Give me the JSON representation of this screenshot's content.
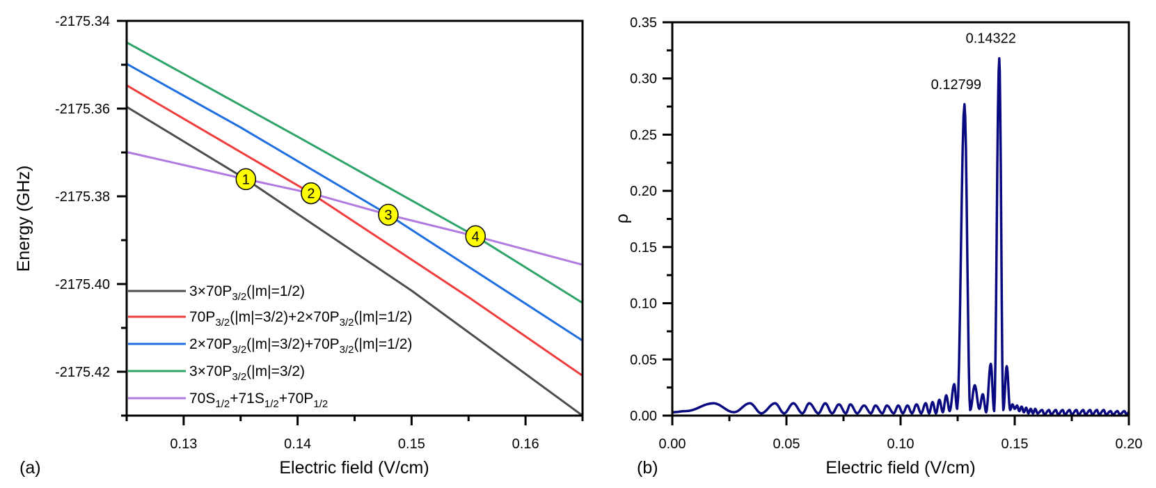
{
  "chart_data": [
    {
      "type": "line",
      "panel_label": "(a)",
      "xlabel": "Electric field (V/cm)",
      "ylabel": "Energy (GHz)",
      "xlim": [
        0.125,
        0.165
      ],
      "ylim": [
        -2175.43,
        -2175.34
      ],
      "xticks": [
        "0.13",
        "0.14",
        "0.15",
        "0.16"
      ],
      "yticks": [
        "-2175.34",
        "-2175.36",
        "-2175.38",
        "-2175.40",
        "-2175.42"
      ],
      "grid": false,
      "legend_position": "bottom-left",
      "series": [
        {
          "name": "3×70P3/2(|m|=1/2)",
          "legend": [
            [
              "3×70P",
              "n"
            ],
            [
              "3/2",
              "s"
            ],
            [
              "(|m|=1/2)",
              "n"
            ]
          ],
          "color": "#4d4d4d",
          "points": [
            [
              0.125,
              -2175.3596
            ],
            [
              0.13546,
              -2175.3761
            ],
            [
              0.15,
              -2175.4015
            ],
            [
              0.165,
              -2175.43
            ]
          ]
        },
        {
          "name": "70P3/2(|m|=3/2)+2×70P3/2(|m|=1/2)",
          "legend": [
            [
              "70P",
              "n"
            ],
            [
              "3/2",
              "s"
            ],
            [
              "(|m|=3/2)+2×70P",
              "n"
            ],
            [
              "3/2",
              "s"
            ],
            [
              "(|m|=1/2)",
              "n"
            ]
          ],
          "color": "#f03c3c",
          "points": [
            [
              0.125,
              -2175.3547
            ],
            [
              0.14118,
              -2175.3793
            ],
            [
              0.155,
              -2175.403
            ],
            [
              0.165,
              -2175.4209
            ]
          ]
        },
        {
          "name": "2×70P3/2(|m|=3/2)+70P3/2(|m|=1/2)",
          "legend": [
            [
              "2×70P",
              "n"
            ],
            [
              "3/2",
              "s"
            ],
            [
              "(|m|=3/2)+70P",
              "n"
            ],
            [
              "3/2",
              "s"
            ],
            [
              "(|m|=1/2)",
              "n"
            ]
          ],
          "color": "#1f6fe0",
          "points": [
            [
              0.125,
              -2175.3498
            ],
            [
              0.135,
              -2175.3643
            ],
            [
              0.14796,
              -2175.3842
            ],
            [
              0.165,
              -2175.4129
            ]
          ]
        },
        {
          "name": "3×70P3/2(|m|=3/2)",
          "legend": [
            [
              "3×70P",
              "n"
            ],
            [
              "3/2",
              "s"
            ],
            [
              "(|m|=3/2)",
              "n"
            ]
          ],
          "color": "#2ea36a",
          "points": [
            [
              0.125,
              -2175.3449
            ],
            [
              0.14,
              -2175.3664
            ],
            [
              0.15561,
              -2175.3891
            ],
            [
              0.165,
              -2175.4043
            ]
          ]
        },
        {
          "name": "70S1/2+71S1/2+70P1/2",
          "legend": [
            [
              "70S",
              "n"
            ],
            [
              "1/2",
              "s"
            ],
            [
              "+71S",
              "n"
            ],
            [
              "1/2",
              "s"
            ],
            [
              "+70P",
              "n"
            ],
            [
              "1/2",
              "s"
            ]
          ],
          "color": "#b07ae0",
          "points": [
            [
              0.125,
              -2175.3699
            ],
            [
              0.13546,
              -2175.3761
            ],
            [
              0.14118,
              -2175.3793
            ],
            [
              0.14796,
              -2175.3842
            ],
            [
              0.15561,
              -2175.3891
            ],
            [
              0.165,
              -2175.3956
            ]
          ]
        }
      ],
      "crossings": [
        {
          "label": "1",
          "x": 0.13546,
          "y": -2175.3761
        },
        {
          "label": "2",
          "x": 0.14118,
          "y": -2175.3793
        },
        {
          "label": "3",
          "x": 0.14796,
          "y": -2175.3842
        },
        {
          "label": "4",
          "x": 0.15561,
          "y": -2175.3891
        }
      ],
      "marker_color": "#ffff00"
    },
    {
      "type": "line",
      "panel_label": "(b)",
      "xlabel": "Electric field (V/cm)",
      "ylabel": "ρ",
      "xlim": [
        0,
        0.2
      ],
      "ylim": [
        0,
        0.35
      ],
      "xticks": [
        "0.00",
        "0.05",
        "0.10",
        "0.15",
        "0.20"
      ],
      "yticks": [
        "0.00",
        "0.05",
        "0.10",
        "0.15",
        "0.20",
        "0.25",
        "0.30",
        "0.35"
      ],
      "grid": false,
      "color": "#0a0a80",
      "annotations": [
        {
          "text": "0.12799",
          "x": 0.12799,
          "y": 0.277
        },
        {
          "text": "0.14322",
          "x": 0.14322,
          "y": 0.318
        }
      ],
      "extrema": [
        [
          0,
          0.003
        ],
        [
          0.006,
          0.004
        ],
        [
          0.018,
          0.011
        ],
        [
          0.027,
          0.003
        ],
        [
          0.034,
          0.011
        ],
        [
          0.039,
          0.002
        ],
        [
          0.045,
          0.011
        ],
        [
          0.049,
          0.002
        ],
        [
          0.053,
          0.011
        ],
        [
          0.057,
          0.002
        ],
        [
          0.06,
          0.011
        ],
        [
          0.064,
          0.002
        ],
        [
          0.067,
          0.011
        ],
        [
          0.07,
          0.002
        ],
        [
          0.073,
          0.01
        ],
        [
          0.076,
          0.002
        ],
        [
          0.078,
          0.01
        ],
        [
          0.081,
          0.002
        ],
        [
          0.084,
          0.009
        ],
        [
          0.087,
          0.002
        ],
        [
          0.089,
          0.009
        ],
        [
          0.092,
          0.002
        ],
        [
          0.094,
          0.009
        ],
        [
          0.097,
          0.002
        ],
        [
          0.099,
          0.009
        ],
        [
          0.101,
          0.002
        ],
        [
          0.103,
          0.009
        ],
        [
          0.105,
          0.002
        ],
        [
          0.107,
          0.01
        ],
        [
          0.109,
          0.002
        ],
        [
          0.111,
          0.011
        ],
        [
          0.1125,
          0.002
        ],
        [
          0.114,
          0.012
        ],
        [
          0.1155,
          0.002
        ],
        [
          0.117,
          0.014
        ],
        [
          0.1185,
          0.003
        ],
        [
          0.12,
          0.018
        ],
        [
          0.1215,
          0.004
        ],
        [
          0.1235,
          0.028
        ],
        [
          0.1248,
          0.006
        ],
        [
          0.12799,
          0.277
        ],
        [
          0.1305,
          0.005
        ],
        [
          0.1325,
          0.027
        ],
        [
          0.1345,
          0.006
        ],
        [
          0.136,
          0.019
        ],
        [
          0.1375,
          0.003
        ],
        [
          0.1395,
          0.046
        ],
        [
          0.141,
          0.004
        ],
        [
          0.14322,
          0.318
        ],
        [
          0.145,
          0.005
        ],
        [
          0.1465,
          0.044
        ],
        [
          0.148,
          0.005
        ],
        [
          0.149,
          0.01
        ],
        [
          0.15,
          0.006
        ],
        [
          0.151,
          0.009
        ],
        [
          0.152,
          0.004
        ],
        [
          0.153,
          0.008
        ],
        [
          0.154,
          0.003
        ],
        [
          0.155,
          0.007
        ],
        [
          0.156,
          0.002
        ],
        [
          0.157,
          0.006
        ],
        [
          0.158,
          0.002
        ],
        [
          0.159,
          0.006
        ],
        [
          0.16,
          0.002
        ],
        [
          0.162,
          0.005
        ],
        [
          0.163,
          0.001
        ],
        [
          0.165,
          0.005
        ],
        [
          0.166,
          0.001
        ],
        [
          0.168,
          0.005
        ],
        [
          0.169,
          0.001
        ],
        [
          0.171,
          0.005
        ],
        [
          0.172,
          0.001
        ],
        [
          0.174,
          0.005
        ],
        [
          0.175,
          0.001
        ],
        [
          0.177,
          0.005
        ],
        [
          0.178,
          0.001
        ],
        [
          0.18,
          0.005
        ],
        [
          0.181,
          0.001
        ],
        [
          0.183,
          0.005
        ],
        [
          0.184,
          0.001
        ],
        [
          0.186,
          0.005
        ],
        [
          0.187,
          0.001
        ],
        [
          0.189,
          0.005
        ],
        [
          0.19,
          0.001
        ],
        [
          0.192,
          0.004
        ],
        [
          0.193,
          0.001
        ],
        [
          0.195,
          0.004
        ],
        [
          0.196,
          0.001
        ],
        [
          0.198,
          0.004
        ],
        [
          0.199,
          0.001
        ],
        [
          0.2,
          0.003
        ]
      ]
    }
  ]
}
